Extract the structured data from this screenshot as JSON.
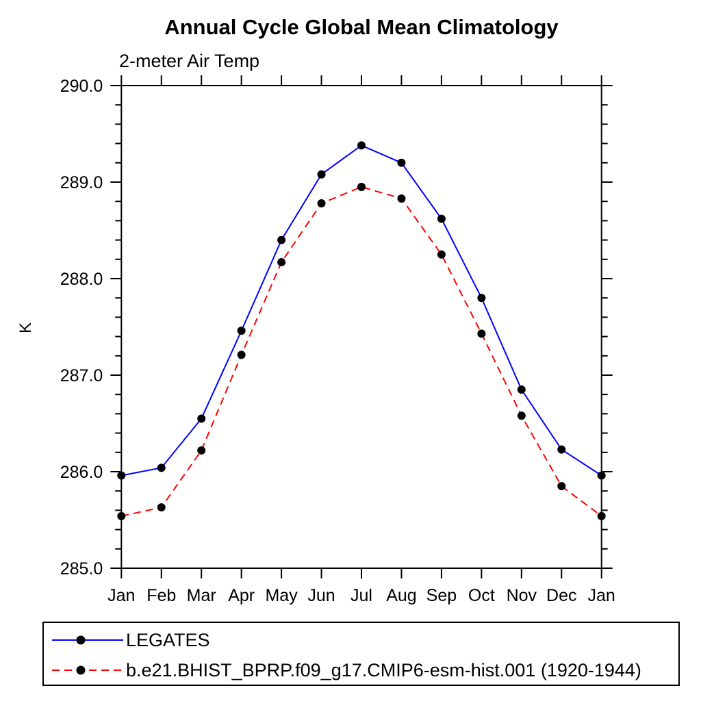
{
  "chart_data": {
    "type": "line",
    "title": "Annual Cycle Global Mean Climatology",
    "subtitle": "2-meter Air Temp",
    "ylabel": "K",
    "categories": [
      "Jan",
      "Feb",
      "Mar",
      "Apr",
      "May",
      "Jun",
      "Jul",
      "Aug",
      "Sep",
      "Oct",
      "Nov",
      "Dec",
      "Jan"
    ],
    "ylim": [
      285.0,
      290.0
    ],
    "ytick_major_step": 1.0,
    "ytick_minor_step": 0.2,
    "ytick_labels": [
      "285.0",
      "286.0",
      "287.0",
      "288.0",
      "289.0",
      "290.0"
    ],
    "grid": false,
    "legend_position": "bottom-left-box",
    "axis_color": "#000000",
    "marker": "filled-circle",
    "marker_color": "#000000",
    "series": [
      {
        "name": "LEGATES",
        "color": "#0000ff",
        "line_style": "solid",
        "values": [
          285.96,
          286.04,
          286.55,
          287.46,
          288.4,
          289.08,
          289.38,
          289.2,
          288.62,
          287.8,
          286.85,
          286.23,
          285.96
        ]
      },
      {
        "name": "b.e21.BHIST_BPRP.f09_g17.CMIP6-esm-hist.001 (1920-1944)",
        "color": "#ff0000",
        "line_style": "dashed",
        "values": [
          285.54,
          285.63,
          286.22,
          287.21,
          288.17,
          288.78,
          288.95,
          288.83,
          288.25,
          287.43,
          286.58,
          285.85,
          285.54
        ]
      }
    ]
  }
}
